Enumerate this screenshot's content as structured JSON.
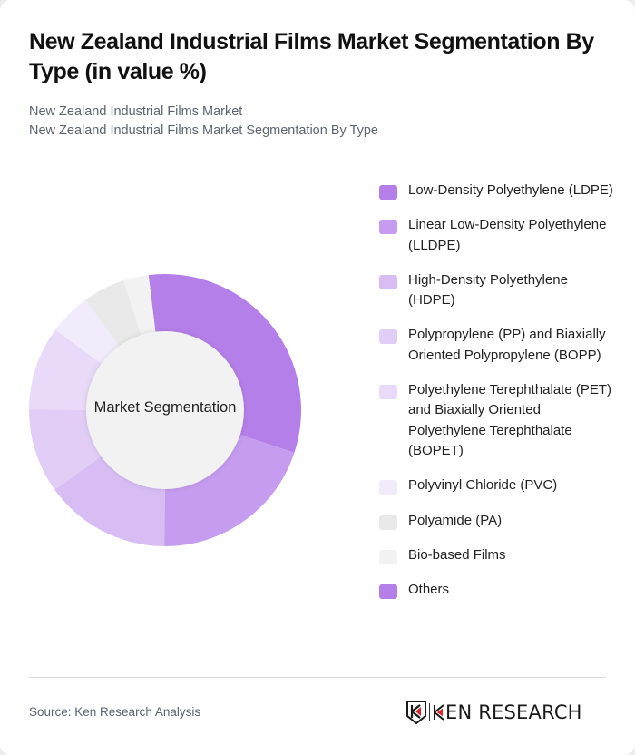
{
  "header": {
    "title": "New Zealand Industrial Films Market Segmentation By Type (in value %)",
    "subtitle_lines": [
      "New Zealand Industrial Films Market",
      "New Zealand Industrial Films Market Segmentation By Type"
    ]
  },
  "chart": {
    "center_label": "Market Segmentation"
  },
  "chart_data": {
    "type": "pie",
    "subtype": "donut",
    "title": "New Zealand Industrial Films Market Segmentation By Type (in value %)",
    "center_label": "Market Segmentation",
    "start_angle_deg": -7,
    "legend_position": "right",
    "categories": [
      "Low-Density Polyethylene (LDPE)",
      "Linear Low-Density Polyethylene (LLDPE)",
      "High-Density Polyethylene (HDPE)",
      "Polypropylene (PP) and Biaxially Oriented Polypropylene (BOPP)",
      "Polyethylene Terephthalate (PET) and Biaxially Oriented Polyethylene Terephthalate (BOPET)",
      "Polyvinyl Chloride (PVC)",
      "Polyamide (PA)",
      "Bio-based Films",
      "Others"
    ],
    "values": [
      32,
      20,
      15,
      10,
      10,
      5,
      5,
      3,
      0
    ],
    "colors": [
      "#b57fe9",
      "#c59cef",
      "#d7bdf4",
      "#e1cdf6",
      "#e8daf8",
      "#f2ebfb",
      "#e9e9e9",
      "#f2f2f2",
      "#b57fe9"
    ]
  },
  "legend": {
    "items": [
      {
        "label": "Low-Density Polyethylene (LDPE)",
        "color": "#b57fe9"
      },
      {
        "label": "Linear Low-Density Polyethylene (LLDPE)",
        "color": "#c59cef"
      },
      {
        "label": "High-Density Polyethylene (HDPE)",
        "color": "#d7bdf4"
      },
      {
        "label": "Polypropylene (PP) and Biaxially Oriented Polypropylene (BOPP)",
        "color": "#e1cdf6"
      },
      {
        "label": "Polyethylene Terephthalate (PET) and Biaxially Oriented Polyethylene Terephthalate (BOPET)",
        "color": "#e8daf8"
      },
      {
        "label": "Polyvinyl Chloride (PVC)",
        "color": "#f2ebfb"
      },
      {
        "label": "Polyamide (PA)",
        "color": "#e9e9e9"
      },
      {
        "label": "Bio-based Films",
        "color": "#f2f2f2"
      },
      {
        "label": "Others",
        "color": "#b57fe9"
      }
    ]
  },
  "footer": {
    "source": "Source: Ken Research Analysis",
    "logo_text": "KEN RESEARCH"
  }
}
